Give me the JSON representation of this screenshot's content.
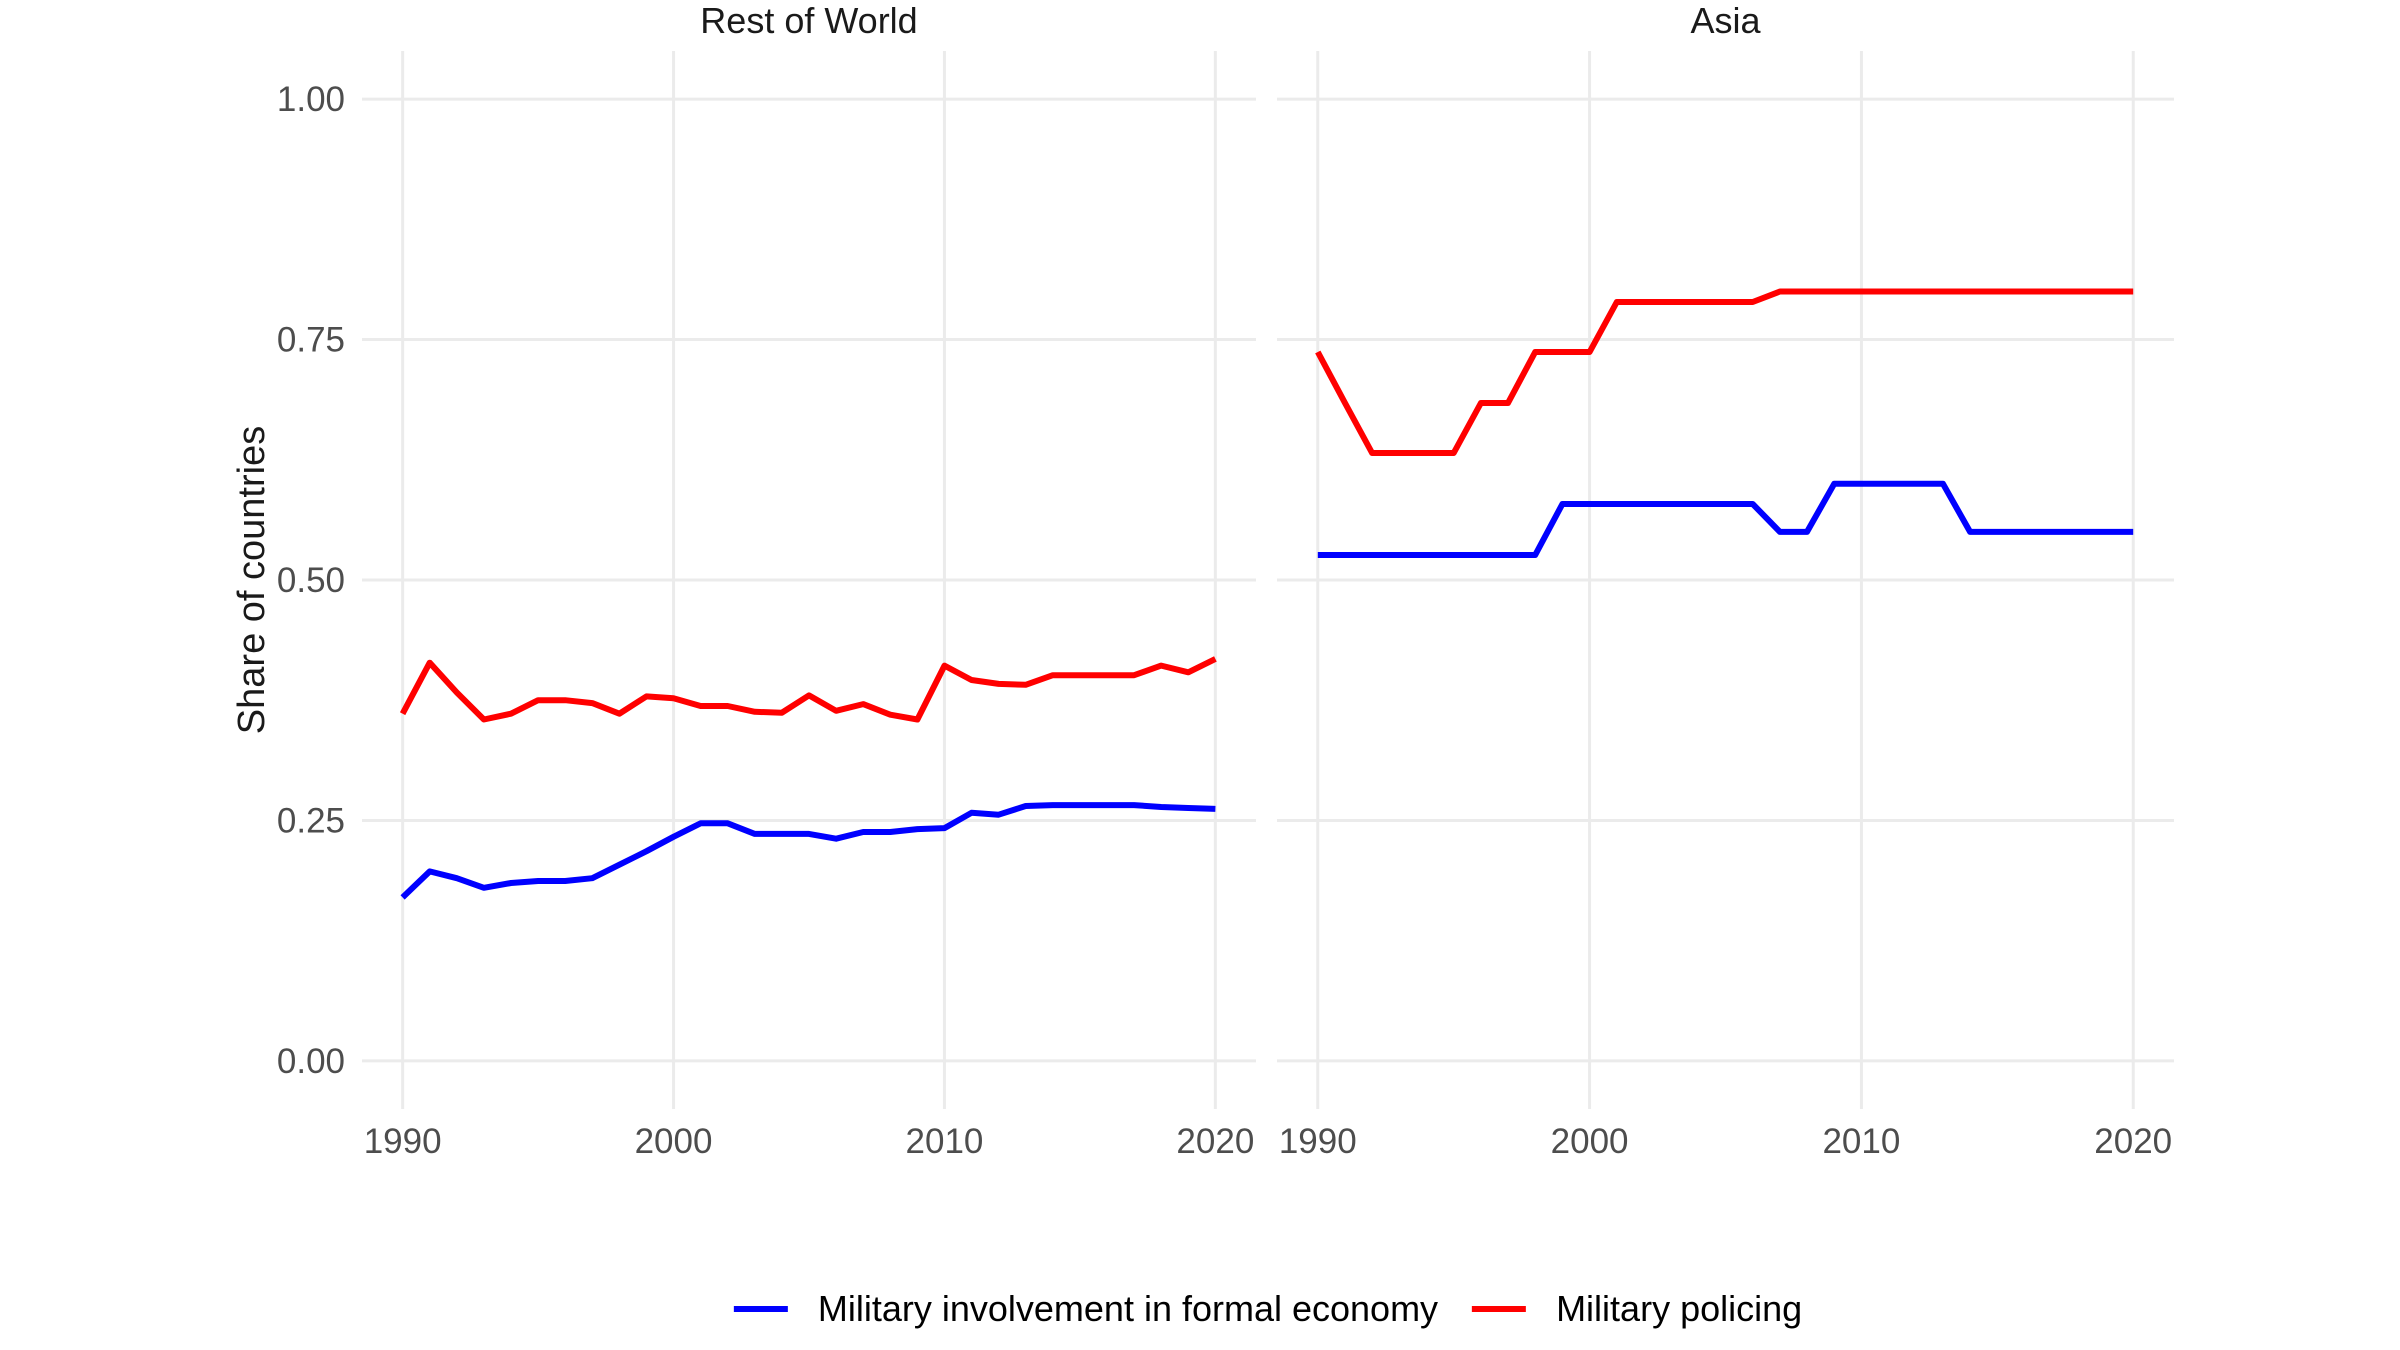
{
  "figure": {
    "y_axis_title": "Share of countries",
    "facet_titles": [
      "Rest of World",
      "Asia"
    ]
  },
  "legend": {
    "items": [
      {
        "label": "Military involvement in formal economy",
        "color": "#0000ff",
        "key": "blue-line"
      },
      {
        "label": "Military policing",
        "color": "#ff0000",
        "key": "red-line"
      }
    ]
  },
  "colors": {
    "blue_series": "#0000ff",
    "red_series": "#ff0000",
    "gridline": "#ebebeb",
    "tick_label": "#4d4d4d",
    "title_text": "#1a1a1a",
    "background": "#ffffff"
  },
  "chart_data": {
    "type": "line",
    "title": "",
    "xlabel": "",
    "ylabel": "Share of countries",
    "xlim": [
      1990,
      2020
    ],
    "ylim": [
      0,
      1
    ],
    "expand_mult": 0.05,
    "grid": "major-only",
    "legend_position": "bottom",
    "x_ticks": [
      1990,
      2000,
      2010,
      2020
    ],
    "x_tick_labels": [
      "1990",
      "2000",
      "2010",
      "2020"
    ],
    "y_ticks": [
      0.0,
      0.25,
      0.5,
      0.75,
      1.0
    ],
    "y_tick_labels": [
      "0.00",
      "0.25",
      "0.50",
      "0.75",
      "1.00"
    ],
    "x": [
      1990,
      1991,
      1992,
      1993,
      1994,
      1995,
      1996,
      1997,
      1998,
      1999,
      2000,
      2001,
      2002,
      2003,
      2004,
      2005,
      2006,
      2007,
      2008,
      2009,
      2010,
      2011,
      2012,
      2013,
      2014,
      2015,
      2016,
      2017,
      2018,
      2019,
      2020
    ],
    "facets": [
      {
        "name": "Rest of World",
        "series": [
          {
            "name": "Military involvement in formal economy",
            "color": "#0000ff",
            "values": [
              0.17,
              0.197,
              0.19,
              0.18,
              0.185,
              0.187,
              0.187,
              0.19,
              0.204,
              0.218,
              0.233,
              0.247,
              0.247,
              0.236,
              0.236,
              0.236,
              0.231,
              0.238,
              0.238,
              0.241,
              0.242,
              0.258,
              0.256,
              0.265,
              0.266,
              0.266,
              0.266,
              0.266,
              0.264,
              0.263,
              0.262
            ]
          },
          {
            "name": "Military policing",
            "color": "#ff0000",
            "values": [
              0.361,
              0.414,
              0.383,
              0.355,
              0.361,
              0.375,
              0.375,
              0.372,
              0.361,
              0.379,
              0.377,
              0.369,
              0.369,
              0.363,
              0.362,
              0.38,
              0.364,
              0.371,
              0.36,
              0.355,
              0.411,
              0.396,
              0.392,
              0.391,
              0.401,
              0.401,
              0.401,
              0.401,
              0.411,
              0.404,
              0.418
            ]
          }
        ]
      },
      {
        "name": "Asia",
        "series": [
          {
            "name": "Military involvement in formal economy",
            "color": "#0000ff",
            "values": [
              0.526,
              0.526,
              0.526,
              0.526,
              0.526,
              0.526,
              0.526,
              0.526,
              0.526,
              0.579,
              0.579,
              0.579,
              0.579,
              0.579,
              0.579,
              0.579,
              0.579,
              0.55,
              0.55,
              0.6,
              0.6,
              0.6,
              0.6,
              0.6,
              0.55,
              0.55,
              0.55,
              0.55,
              0.55,
              0.55,
              0.55
            ]
          },
          {
            "name": "Military policing",
            "color": "#ff0000",
            "values": [
              0.737,
              0.684,
              0.632,
              0.632,
              0.632,
              0.632,
              0.684,
              0.684,
              0.737,
              0.737,
              0.737,
              0.789,
              0.789,
              0.789,
              0.789,
              0.789,
              0.789,
              0.8,
              0.8,
              0.8,
              0.8,
              0.8,
              0.8,
              0.8,
              0.8,
              0.8,
              0.8,
              0.8,
              0.8,
              0.8,
              0.8
            ]
          }
        ]
      }
    ]
  }
}
